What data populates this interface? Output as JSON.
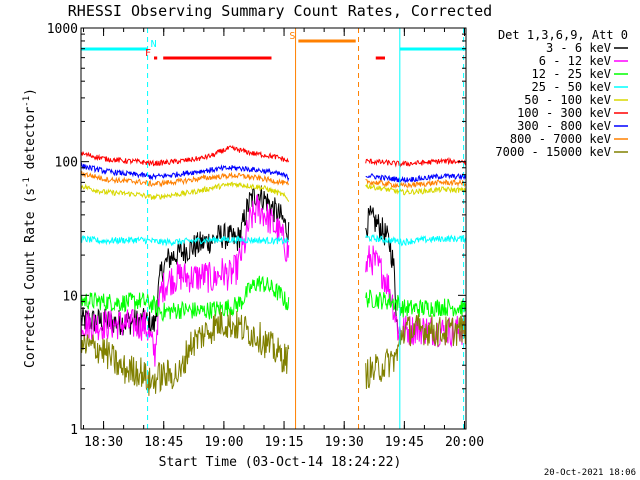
{
  "chart_data": {
    "type": "line",
    "title": "RHESSI Observing Summary Count Rates, Corrected",
    "xlabel": "Start Time (03-Oct-14 18:24:22)",
    "ylabel_main": "Corrected Count Rate (s",
    "ylabel_sup1": "-1",
    "ylabel_mid": " detector",
    "ylabel_sup2": "-1",
    "ylabel_end": ")",
    "yscale": "log",
    "ylim": [
      1,
      1000
    ],
    "xlim_minutes": [
      0,
      96
    ],
    "x_unit": "minutes after 18:24:22",
    "y_ticks": [
      {
        "value": 1,
        "label": "1"
      },
      {
        "value": 10,
        "label": "10"
      },
      {
        "value": 100,
        "label": "100"
      },
      {
        "value": 1000,
        "label": "1000"
      }
    ],
    "x_ticks": [
      {
        "value": 5.63,
        "label": "18:30"
      },
      {
        "value": 20.63,
        "label": "18:45"
      },
      {
        "value": 35.63,
        "label": "19:00"
      },
      {
        "value": 50.63,
        "label": "19:15"
      },
      {
        "value": 65.63,
        "label": "19:30"
      },
      {
        "value": 80.63,
        "label": "19:45"
      },
      {
        "value": 95.63,
        "label": "20:00"
      }
    ],
    "legend_title": "Det 1,3,6,9, Att 0",
    "legend_position": "top-right, outside plot",
    "series": [
      {
        "name": "3 - 6 keV",
        "color": "#000000",
        "segments": [
          {
            "x": [
              0,
              10,
              16,
              17,
              18,
              18.5,
              20,
              22,
              25,
              28,
              31,
              33,
              35,
              37,
              39,
              40,
              41,
              42,
              44,
              46,
              48,
              50,
              51,
              51.8
            ],
            "y": [
              6.5,
              6.3,
              6.4,
              6.2,
              6.0,
              6.1,
              15,
              19,
              21,
              23,
              25,
              26,
              28,
              27,
              26,
              30,
              40,
              50,
              58,
              52,
              44,
              38,
              33,
              30
            ]
          },
          {
            "x": [
              71,
              72,
              73,
              74,
              75,
              76,
              77,
              78,
              78.5,
              79
            ],
            "y": [
              32,
              38,
              36,
              34,
              31,
              28,
              24,
              16,
              9,
              5
            ]
          }
        ]
      },
      {
        "name": "6 - 12 keV",
        "color": "#ff00ff",
        "segments": [
          {
            "x": [
              0,
              5,
              10,
              16,
              17,
              18,
              18.5,
              20,
              22,
              25,
              28,
              31,
              33,
              35,
              37,
              39,
              41,
              42,
              44,
              46,
              48,
              50,
              51,
              51.8
            ],
            "y": [
              6.2,
              6.0,
              6.1,
              6.0,
              5.0,
              4.0,
              3.6,
              11,
              13,
              14,
              13.5,
              14,
              13,
              15,
              14,
              16,
              25,
              35,
              45,
              40,
              33,
              28,
              23,
              21
            ]
          },
          {
            "x": [
              71,
              72,
              73,
              74,
              75,
              76,
              77,
              78,
              79,
              80,
              85,
              90,
              96
            ],
            "y": [
              16,
              19,
              18,
              16.5,
              15,
              13,
              11,
              8,
              5.5,
              5.5,
              5.6,
              5.4,
              5.5
            ]
          }
        ]
      },
      {
        "name": "12 - 25 keV",
        "color": "#00ff00",
        "segments": [
          {
            "x": [
              0,
              5,
              10,
              15,
              18,
              20,
              25,
              30,
              35,
              38,
              40,
              42,
              44,
              46,
              48,
              50,
              51,
              51.8
            ],
            "y": [
              9.2,
              9.0,
              8.8,
              9.1,
              8.5,
              7.5,
              7.8,
              7.6,
              8.0,
              8.2,
              9.0,
              11,
              12.5,
              12,
              11,
              10,
              9,
              8.5
            ]
          },
          {
            "x": [
              71,
              75,
              79,
              80,
              85,
              90,
              96
            ],
            "y": [
              9.5,
              9.2,
              8.8,
              8.0,
              8.0,
              8.2,
              8.1
            ]
          }
        ]
      },
      {
        "name": "25 - 50 keV",
        "color": "#00ffff",
        "segments": [
          {
            "x": [
              0,
              5,
              10,
              15,
              20,
              25,
              30,
              35,
              40,
              45,
              50,
              51.8
            ],
            "y": [
              26.5,
              25.5,
              25.8,
              26.0,
              25.0,
              25.2,
              25.8,
              26.2,
              26.0,
              25.8,
              25.5,
              25.5
            ]
          },
          {
            "x": [
              71,
              75,
              79,
              80,
              85,
              90,
              96
            ],
            "y": [
              27,
              26.2,
              25.5,
              25.0,
              26.0,
              26.5,
              26.5
            ]
          }
        ]
      },
      {
        "name": "50 - 100 keV",
        "color": "#d8d800",
        "segments": [
          {
            "x": [
              0,
              3,
              6,
              10,
              14,
              18,
              22,
              26,
              30,
              34,
              38,
              42,
              46,
              50,
              51.8
            ],
            "y": [
              66,
              62,
              59,
              58,
              57,
              54,
              56,
              58,
              61,
              65,
              68,
              66,
              63,
              57,
              52
            ]
          },
          {
            "x": [
              71,
              75,
              80,
              85,
              90,
              96
            ],
            "y": [
              66,
              63,
              59,
              60,
              62,
              61
            ]
          }
        ]
      },
      {
        "name": "100 - 300 keV",
        "color": "#ff0000",
        "segments": [
          {
            "x": [
              0,
              3,
              6,
              10,
              14,
              18,
              22,
              26,
              30,
              33,
              35,
              37,
              39,
              41,
              43,
              46,
              50,
              51.8
            ],
            "y": [
              115,
              110,
              105,
              102,
              100,
              97,
              99,
              102,
              106,
              112,
              120,
              126,
              123,
              119,
              115,
              112,
              106,
              100
            ]
          },
          {
            "x": [
              71,
              75,
              80,
              85,
              90,
              96
            ],
            "y": [
              101,
              99,
              96,
              98,
              101,
              100
            ]
          }
        ]
      },
      {
        "name": "300 - 800 keV",
        "color": "#0000ff",
        "segments": [
          {
            "x": [
              0,
              3,
              6,
              10,
              14,
              18,
              22,
              26,
              30,
              34,
              38,
              42,
              46,
              50,
              51.8
            ],
            "y": [
              93,
              89,
              85,
              82,
              80,
              77,
              79,
              82,
              85,
              88,
              90,
              88,
              85,
              80,
              76
            ]
          },
          {
            "x": [
              71,
              75,
              80,
              85,
              90,
              96
            ],
            "y": [
              79,
              76,
              73,
              75,
              78,
              77
            ]
          }
        ]
      },
      {
        "name": "800 - 7000 keV",
        "color": "#ff8000",
        "segments": [
          {
            "x": [
              0,
              3,
              6,
              10,
              14,
              18,
              22,
              26,
              30,
              34,
              38,
              42,
              46,
              50,
              51.8
            ],
            "y": [
              82,
              78,
              74,
              72,
              71,
              68,
              70,
              72,
              75,
              77,
              79,
              77,
              74,
              70,
              67
            ]
          },
          {
            "x": [
              71,
              75,
              80,
              85,
              90,
              96
            ],
            "y": [
              71,
              69,
              66,
              68,
              70,
              69
            ]
          }
        ]
      },
      {
        "name": "7000 - 15000 keV",
        "color": "#808000",
        "segments": [
          {
            "x": [
              0,
              5,
              10,
              15,
              17,
              20,
              25,
              27,
              30,
              32,
              35,
              38,
              40,
              44,
              46,
              50,
              51.8
            ],
            "y": [
              4.2,
              4.0,
              2.8,
              2.7,
              2.2,
              2.5,
              2.6,
              4.2,
              5.0,
              5.5,
              6.3,
              6.0,
              5.7,
              5.0,
              4.4,
              3.5,
              3.3
            ]
          },
          {
            "x": [
              71,
              74,
              77,
              79,
              80,
              85,
              90,
              96
            ],
            "y": [
              2.6,
              2.8,
              3.2,
              3.6,
              5.4,
              5.6,
              5.3,
              5.6
            ]
          }
        ]
      }
    ],
    "flags": [
      {
        "label": "N",
        "color": "#00ffff",
        "y_position": "top",
        "segments": [
          [
            0,
            16.6
          ],
          [
            79.5,
            96
          ]
        ]
      },
      {
        "label": "F",
        "color": "#ff0000",
        "y_position": "middle",
        "segments": [
          [
            18.2,
            19.0
          ],
          [
            20.5,
            47.5
          ],
          [
            73.5,
            75.8
          ]
        ]
      },
      {
        "label": "S",
        "color": "#ff8000",
        "y_position": "high",
        "segments": [
          [
            54.2,
            68.5
          ]
        ]
      }
    ],
    "vertical_lines": [
      {
        "x": 0,
        "color": "#00ffff",
        "style": "solid"
      },
      {
        "x": 16.6,
        "color": "#00ffff",
        "style": "dashed"
      },
      {
        "x": 53.5,
        "color": "#ff8000",
        "style": "solid"
      },
      {
        "x": 69.2,
        "color": "#ff8000",
        "style": "dashed"
      },
      {
        "x": 79.5,
        "color": "#00ffff",
        "style": "solid"
      },
      {
        "x": 95.4,
        "color": "#00ffff",
        "style": "dashed"
      }
    ],
    "timestamp": "20-Oct-2021 18:06"
  }
}
